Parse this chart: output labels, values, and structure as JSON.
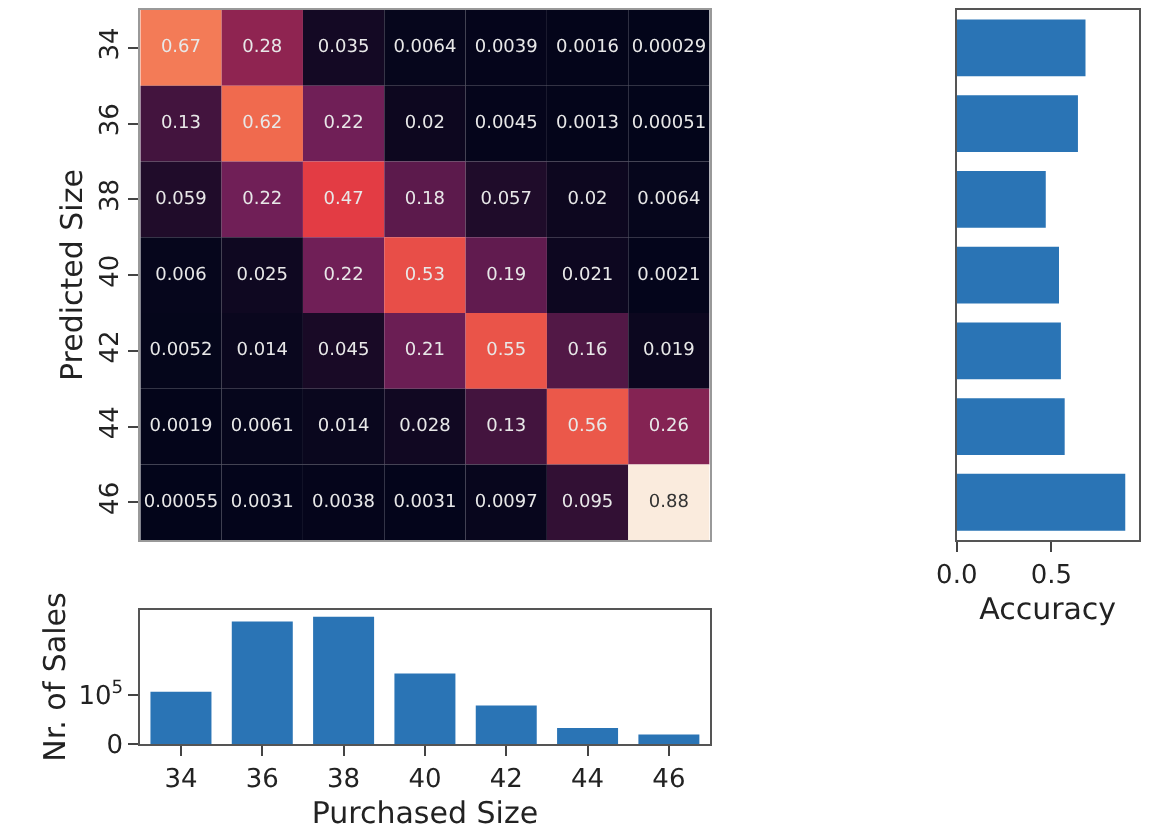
{
  "chart_data": [
    {
      "type": "heatmap",
      "ylabel": "Predicted Size",
      "categories": [
        "34",
        "36",
        "38",
        "40",
        "42",
        "44",
        "46"
      ],
      "y_categories": [
        "34",
        "36",
        "38",
        "40",
        "42",
        "44",
        "46"
      ],
      "cells": [
        [
          0.67,
          0.28,
          0.035,
          0.0064,
          0.0039,
          0.0016,
          0.00029
        ],
        [
          0.13,
          0.62,
          0.22,
          0.02,
          0.0045,
          0.0013,
          0.00051
        ],
        [
          0.059,
          0.22,
          0.47,
          0.18,
          0.057,
          0.02,
          0.0064
        ],
        [
          0.006,
          0.025,
          0.22,
          0.53,
          0.19,
          0.021,
          0.0021
        ],
        [
          0.0052,
          0.014,
          0.045,
          0.21,
          0.55,
          0.16,
          0.019
        ],
        [
          0.0019,
          0.0061,
          0.014,
          0.028,
          0.13,
          0.56,
          0.26
        ],
        [
          0.00055,
          0.0031,
          0.0038,
          0.0031,
          0.0097,
          0.095,
          0.88
        ]
      ],
      "data_labels": true,
      "tick_labels": "y"
    },
    {
      "type": "bar",
      "orientation": "horizontal",
      "xlabel": "Accuracy",
      "categories": [
        "34",
        "36",
        "38",
        "40",
        "42",
        "44",
        "46"
      ],
      "values": [
        0.68,
        0.64,
        0.47,
        0.54,
        0.55,
        0.57,
        0.89
      ],
      "color": "#2a74b5",
      "xlim": [
        0,
        0.96
      ],
      "xticks": [
        {
          "value": 0,
          "label": "0.0"
        },
        {
          "value": 0.5,
          "label": "0.5"
        }
      ],
      "tick_labels": "x"
    },
    {
      "type": "bar",
      "xlabel": "Purchased Size",
      "ylabel": "Nr. of Sales",
      "categories": [
        "34",
        "36",
        "38",
        "40",
        "42",
        "44",
        "46"
      ],
      "values": [
        107000,
        250000,
        260000,
        144000,
        79000,
        33000,
        20000
      ],
      "color": "#2a74b5",
      "ylim": [
        0,
        274000
      ],
      "yticks": [
        0,
        {
          "value": 100000,
          "label": "10$^{5}$"
        }
      ]
    }
  ]
}
